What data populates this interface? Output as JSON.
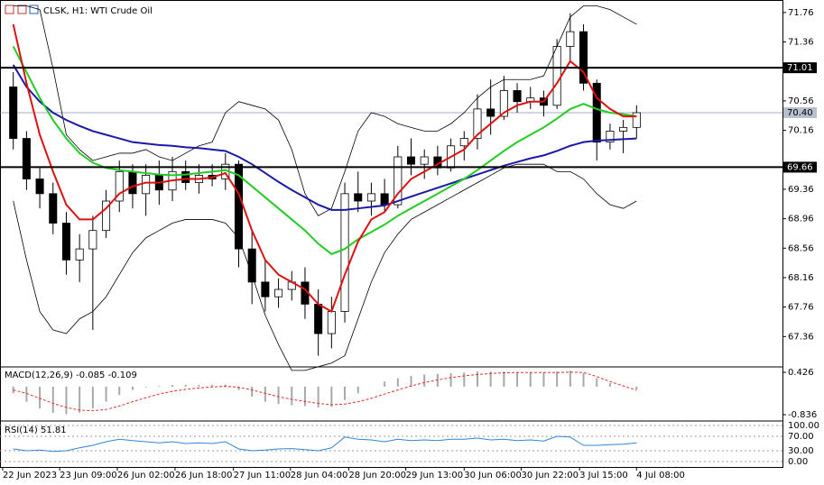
{
  "chart_data": {
    "type": "candlestick",
    "title": "CLSK, H1: WTI Crude Oil",
    "xlim": [
      -1,
      48
    ],
    "xticks": [
      {
        "value": -0.8,
        "label": "22 Jun 2023"
      },
      {
        "value": 3.5,
        "label": "23 Jun 09:00"
      },
      {
        "value": 7.85,
        "label": "26 Jun 02:00"
      },
      {
        "value": 12.2,
        "label": "26 Jun 18:00"
      },
      {
        "value": 16.6,
        "label": "27 Jun 11:00"
      },
      {
        "value": 20.9,
        "label": "28 Jun 04:00"
      },
      {
        "value": 25.3,
        "label": "28 Jun 20:00"
      },
      {
        "value": 29.6,
        "label": "29 Jun 13:00"
      },
      {
        "value": 34,
        "label": "30 Jun 06:00"
      },
      {
        "value": 38.3,
        "label": "30 Jun 22:00"
      },
      {
        "value": 42.7,
        "label": "3 Jul 15:00"
      },
      {
        "value": 47,
        "label": "4 Jul 08:00"
      }
    ],
    "ylim": [
      66.96,
      71.93
    ],
    "yticks": [
      71.76,
      71.36,
      70.56,
      70.16,
      69.36,
      68.96,
      68.56,
      68.16,
      67.76,
      67.36
    ],
    "levels": [
      71.01,
      69.66
    ],
    "last_price": {
      "value": 70.4,
      "label": "70.40"
    },
    "open": [
      70.75,
      70.05,
      69.5,
      69.3,
      68.9,
      68.4,
      68.55,
      68.8,
      69.2,
      69.6,
      69.3,
      69.55,
      69.35,
      69.6,
      69.45,
      69.55,
      69.5,
      69.7,
      68.55,
      68.1,
      67.9,
      68.0,
      68.1,
      67.8,
      67.4,
      67.7,
      69.3,
      69.2,
      69.3,
      69.15,
      69.8,
      69.7,
      69.8,
      69.65,
      69.95,
      70.05,
      70.45,
      70.35,
      70.7,
      70.55,
      70.6,
      70.5,
      71.3,
      71.5,
      70.8,
      70.0,
      70.15,
      70.2
    ],
    "high": [
      70.95,
      70.15,
      69.65,
      69.45,
      69.05,
      68.75,
      69.0,
      69.35,
      69.75,
      69.7,
      69.7,
      69.75,
      69.8,
      69.75,
      69.7,
      69.7,
      69.85,
      69.75,
      68.8,
      68.4,
      68.15,
      68.25,
      68.3,
      68.0,
      67.9,
      69.45,
      69.6,
      69.45,
      69.5,
      69.95,
      70.05,
      69.9,
      69.95,
      70.05,
      70.15,
      70.65,
      70.85,
      70.9,
      70.8,
      70.75,
      70.7,
      71.4,
      71.75,
      71.6,
      70.85,
      70.25,
      70.3,
      70.5
    ],
    "low": [
      69.9,
      69.35,
      69.1,
      68.75,
      68.2,
      68.1,
      67.45,
      68.7,
      69.05,
      69.1,
      69.0,
      69.15,
      69.2,
      69.35,
      69.3,
      69.4,
      69.35,
      68.3,
      67.8,
      67.7,
      67.75,
      67.85,
      67.6,
      67.1,
      67.2,
      67.55,
      69.05,
      69.0,
      69.05,
      69.1,
      69.55,
      69.5,
      69.55,
      69.6,
      69.75,
      69.9,
      70.1,
      70.3,
      70.4,
      70.45,
      70.35,
      70.45,
      71.1,
      70.7,
      69.75,
      69.9,
      69.85,
      70.05
    ],
    "close": [
      70.05,
      69.5,
      69.3,
      68.9,
      68.4,
      68.55,
      68.8,
      69.2,
      69.6,
      69.3,
      69.55,
      69.35,
      69.6,
      69.45,
      69.55,
      69.5,
      69.7,
      68.55,
      68.1,
      67.9,
      68.0,
      68.1,
      67.8,
      67.4,
      67.7,
      69.3,
      69.2,
      69.3,
      69.15,
      69.8,
      69.7,
      69.8,
      69.65,
      69.95,
      70.05,
      70.45,
      70.35,
      70.7,
      70.55,
      70.6,
      70.5,
      71.3,
      71.5,
      70.8,
      70.0,
      70.15,
      70.2,
      70.4
    ],
    "lines": [
      {
        "color": "#000000",
        "values": [
          71.85,
          71.85,
          71.8,
          71.0,
          70.1,
          69.9,
          69.75,
          69.8,
          69.85,
          69.85,
          69.9,
          69.8,
          69.75,
          69.85,
          69.95,
          70.0,
          70.4,
          70.55,
          70.5,
          70.45,
          70.3,
          69.9,
          69.3,
          69.0,
          69.1,
          69.6,
          70.15,
          70.4,
          70.35,
          70.25,
          70.2,
          70.15,
          70.15,
          70.25,
          70.4,
          70.6,
          70.75,
          70.85,
          70.85,
          70.85,
          70.9,
          71.3,
          71.7,
          71.85,
          71.85,
          71.8,
          71.7,
          71.6
        ]
      },
      {
        "color": "#000000",
        "values": [
          69.2,
          68.4,
          67.7,
          67.45,
          67.4,
          67.6,
          67.7,
          67.9,
          68.2,
          68.5,
          68.7,
          68.8,
          68.9,
          68.95,
          68.95,
          68.95,
          68.9,
          68.7,
          68.2,
          67.65,
          67.25,
          66.9,
          66.9,
          66.95,
          67.0,
          67.1,
          67.6,
          68.1,
          68.5,
          68.75,
          68.95,
          69.05,
          69.15,
          69.25,
          69.35,
          69.45,
          69.55,
          69.65,
          69.7,
          69.7,
          69.7,
          69.6,
          69.6,
          69.5,
          69.3,
          69.15,
          69.1,
          69.2
        ]
      },
      {
        "color": "#1a1aa8",
        "values": [
          71.05,
          70.75,
          70.55,
          70.4,
          70.3,
          70.22,
          70.15,
          70.1,
          70.05,
          70.0,
          69.98,
          69.96,
          69.95,
          69.93,
          69.92,
          69.9,
          69.88,
          69.8,
          69.7,
          69.58,
          69.46,
          69.35,
          69.25,
          69.15,
          69.08,
          69.08,
          69.1,
          69.12,
          69.14,
          69.2,
          69.26,
          69.32,
          69.38,
          69.44,
          69.5,
          69.56,
          69.62,
          69.68,
          69.73,
          69.78,
          69.82,
          69.88,
          69.95,
          70.0,
          70.02,
          70.03,
          70.04,
          70.05
        ]
      },
      {
        "color": "#22cc22",
        "values": [
          71.3,
          70.95,
          70.6,
          70.3,
          70.05,
          69.85,
          69.72,
          69.65,
          69.62,
          69.6,
          69.58,
          69.56,
          69.55,
          69.56,
          69.58,
          69.6,
          69.62,
          69.55,
          69.4,
          69.25,
          69.1,
          68.95,
          68.8,
          68.62,
          68.48,
          68.55,
          68.68,
          68.78,
          68.88,
          69.0,
          69.1,
          69.2,
          69.3,
          69.4,
          69.5,
          69.62,
          69.75,
          69.88,
          70.0,
          70.1,
          70.2,
          70.32,
          70.45,
          70.52,
          70.45,
          70.4,
          70.38,
          70.35
        ]
      },
      {
        "color": "#dd1111",
        "values": [
          71.6,
          70.8,
          70.1,
          69.6,
          69.15,
          68.95,
          68.95,
          69.1,
          69.3,
          69.4,
          69.45,
          69.45,
          69.48,
          69.5,
          69.5,
          69.52,
          69.58,
          69.3,
          68.8,
          68.4,
          68.2,
          68.1,
          68.0,
          67.8,
          67.7,
          68.2,
          68.65,
          68.95,
          69.05,
          69.3,
          69.5,
          69.6,
          69.7,
          69.8,
          69.9,
          70.1,
          70.25,
          70.4,
          70.5,
          70.55,
          70.55,
          70.8,
          71.1,
          70.95,
          70.6,
          70.45,
          70.35,
          70.35
        ]
      }
    ],
    "macd": {
      "label": "MACD(12,26,9)",
      "ylim": [
        -0.997,
        0.587
      ],
      "yticks": [
        0.426,
        -0.836
      ],
      "histogram_color": "#a8a8a8",
      "signal_color": "#e03030",
      "histogram": [
        -0.2,
        -0.45,
        -0.65,
        -0.78,
        -0.82,
        -0.78,
        -0.65,
        -0.45,
        -0.25,
        -0.1,
        -0.02,
        0.02,
        0.05,
        0.05,
        0.05,
        0.05,
        0.06,
        -0.1,
        -0.3,
        -0.45,
        -0.52,
        -0.55,
        -0.58,
        -0.62,
        -0.6,
        -0.4,
        -0.2,
        0.0,
        0.15,
        0.25,
        0.32,
        0.36,
        0.38,
        0.4,
        0.42,
        0.45,
        0.45,
        0.45,
        0.44,
        0.43,
        0.42,
        0.45,
        0.48,
        0.4,
        0.25,
        0.1,
        0.0,
        -0.085
      ],
      "signal": [
        -0.1,
        -0.2,
        -0.35,
        -0.5,
        -0.62,
        -0.7,
        -0.72,
        -0.68,
        -0.58,
        -0.45,
        -0.33,
        -0.22,
        -0.14,
        -0.08,
        -0.04,
        -0.01,
        0.01,
        -0.02,
        -0.1,
        -0.2,
        -0.3,
        -0.38,
        -0.44,
        -0.5,
        -0.54,
        -0.52,
        -0.45,
        -0.35,
        -0.22,
        -0.1,
        0.02,
        0.12,
        0.2,
        0.27,
        0.32,
        0.36,
        0.39,
        0.41,
        0.42,
        0.42,
        0.42,
        0.42,
        0.43,
        0.42,
        0.3,
        0.15,
        0.02,
        -0.109
      ]
    },
    "rsi": {
      "label": "RSI(14)",
      "ylim": [
        -15,
        112.5
      ],
      "yticks": [
        {
          "value": 100,
          "label": "100.00"
        },
        {
          "value": 70,
          "label": "70.00"
        },
        {
          "value": 30,
          "label": "30.00"
        },
        {
          "value": 0,
          "label": "0.00"
        }
      ],
      "color": "#2f86d6",
      "values": [
        35,
        30,
        32,
        28,
        30,
        38,
        45,
        55,
        62,
        58,
        55,
        52,
        55,
        50,
        52,
        50,
        55,
        35,
        30,
        32,
        35,
        36,
        33,
        30,
        38,
        68,
        62,
        60,
        55,
        62,
        58,
        60,
        58,
        62,
        62,
        65,
        60,
        62,
        58,
        60,
        57,
        70,
        68,
        45,
        45,
        47,
        48,
        51.81
      ]
    }
  }
}
